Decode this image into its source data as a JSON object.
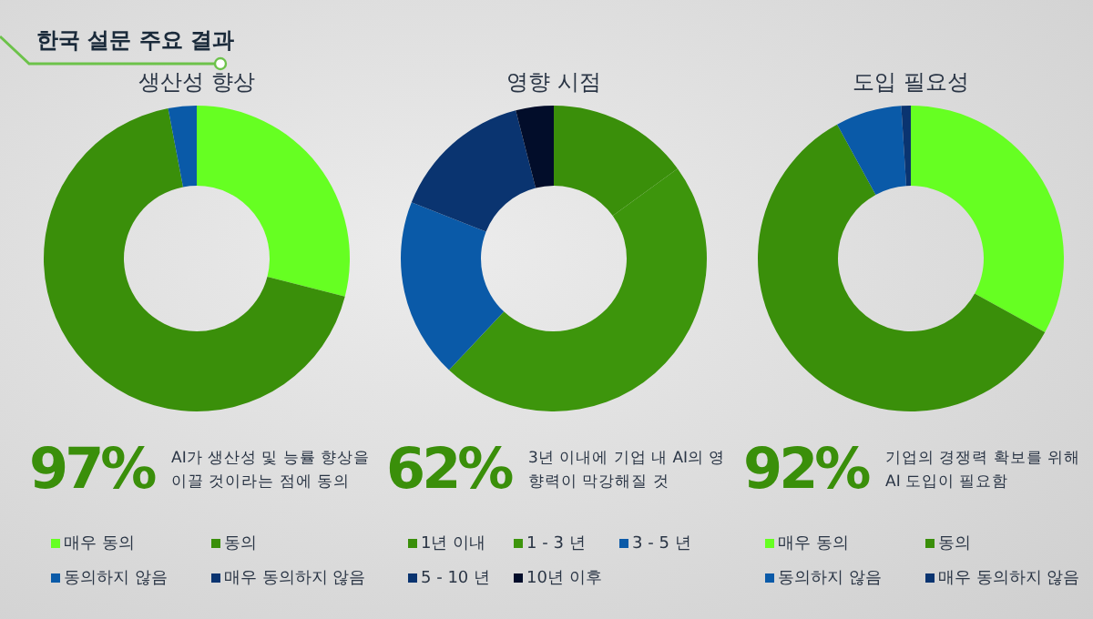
{
  "chart_data": [
    {
      "type": "other",
      "title": "한국 설문 주요 결과"
    },
    {
      "type": "donut",
      "title": "생산성 향상",
      "categories": [
        "매우 동의",
        "동의",
        "동의하지 않음",
        "매우 동의하지 않음"
      ],
      "values": [
        29,
        68,
        3,
        0
      ],
      "colors": [
        "#66ff22",
        "#3a8f0a",
        "#0a5aa8",
        "#0a3470"
      ],
      "legend": "bottom",
      "annotations": [
        "97%",
        "AI가 생산성 및 능률 향상을 이끌 것이라는 점에 동의"
      ]
    },
    {
      "type": "donut",
      "title": "영향 시점",
      "categories": [
        "1년 이내",
        "1 - 3 년",
        "3 - 5 년",
        "5 - 10 년",
        "10년 이후"
      ],
      "values": [
        15,
        47,
        19,
        15,
        4
      ],
      "colors": [
        "#3a8f0a",
        "#3d950c",
        "#0a5aa8",
        "#0a3470",
        "#020d2a"
      ],
      "legend": "bottom",
      "annotations": [
        "62%",
        "3년 이내에 기업 내 AI의 영향력이 막강해질 것"
      ]
    },
    {
      "type": "donut",
      "title": "도입 필요성",
      "categories": [
        "매우 동의",
        "동의",
        "동의하지 않음",
        "매우 동의하지 않음"
      ],
      "values": [
        33,
        59,
        7,
        1
      ],
      "colors": [
        "#66ff22",
        "#3a8f0a",
        "#0a5aa8",
        "#0a3470"
      ],
      "legend": "bottom",
      "annotations": [
        "92%",
        "기업의 경쟁력 확보를 위해 AI 도입이 필요함"
      ]
    }
  ]
}
